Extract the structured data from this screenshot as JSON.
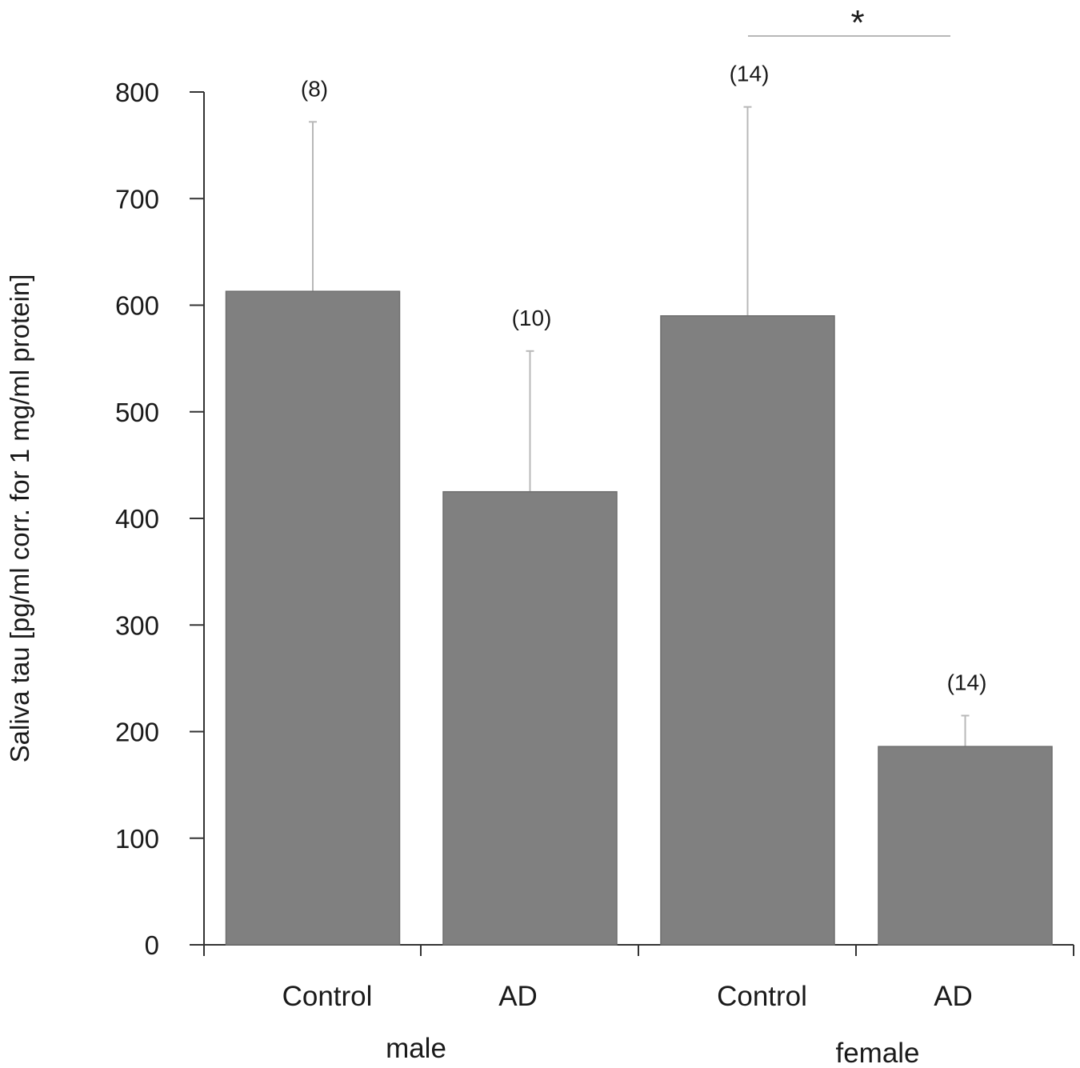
{
  "chart_data": {
    "type": "bar",
    "ylabel": "Saliva tau [pg/ml corr. for 1 mg/ml protein]",
    "ylim": [
      0,
      800
    ],
    "yticks": [
      0,
      100,
      200,
      300,
      400,
      500,
      600,
      700,
      800
    ],
    "grid": false,
    "categories": [
      "Control",
      "AD",
      "Control",
      "AD"
    ],
    "groups": [
      {
        "label": "male",
        "categories": [
          0,
          1
        ]
      },
      {
        "label": "female",
        "categories": [
          2,
          3
        ]
      }
    ],
    "values": [
      613,
      425,
      590,
      186
    ],
    "error_upper": [
      772,
      557,
      786,
      215
    ],
    "n_labels": [
      "(8)",
      "(10)",
      "(14)",
      "(14)"
    ],
    "significance": {
      "from": 2,
      "to": 3,
      "label": "*"
    },
    "colors": {
      "bar": "#808080",
      "error": "#b8b8b8",
      "axis": "#333333"
    }
  }
}
